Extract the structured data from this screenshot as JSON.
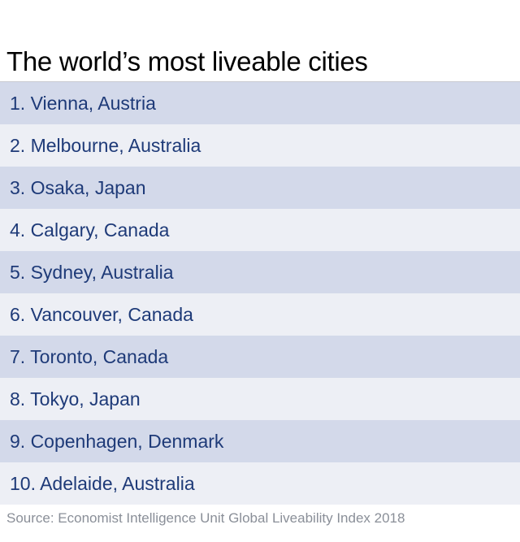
{
  "title": "The world’s most liveable cities",
  "rows": [
    "1. Vienna, Austria",
    "2. Melbourne, Australia",
    "3. Osaka, Japan",
    "4. Calgary, Canada",
    "5. Sydney, Australia",
    "6. Vancouver, Canada",
    "7. Toronto, Canada",
    "8. Tokyo, Japan",
    "9. Copenhagen, Denmark",
    "10. Adelaide, Australia"
  ],
  "source": "Source: Economist Intelligence Unit Global Liveability Index 2018",
  "colors": {
    "row_dark": "#d3d9ea",
    "row_light": "#edeff5",
    "text": "#1e3a78"
  }
}
